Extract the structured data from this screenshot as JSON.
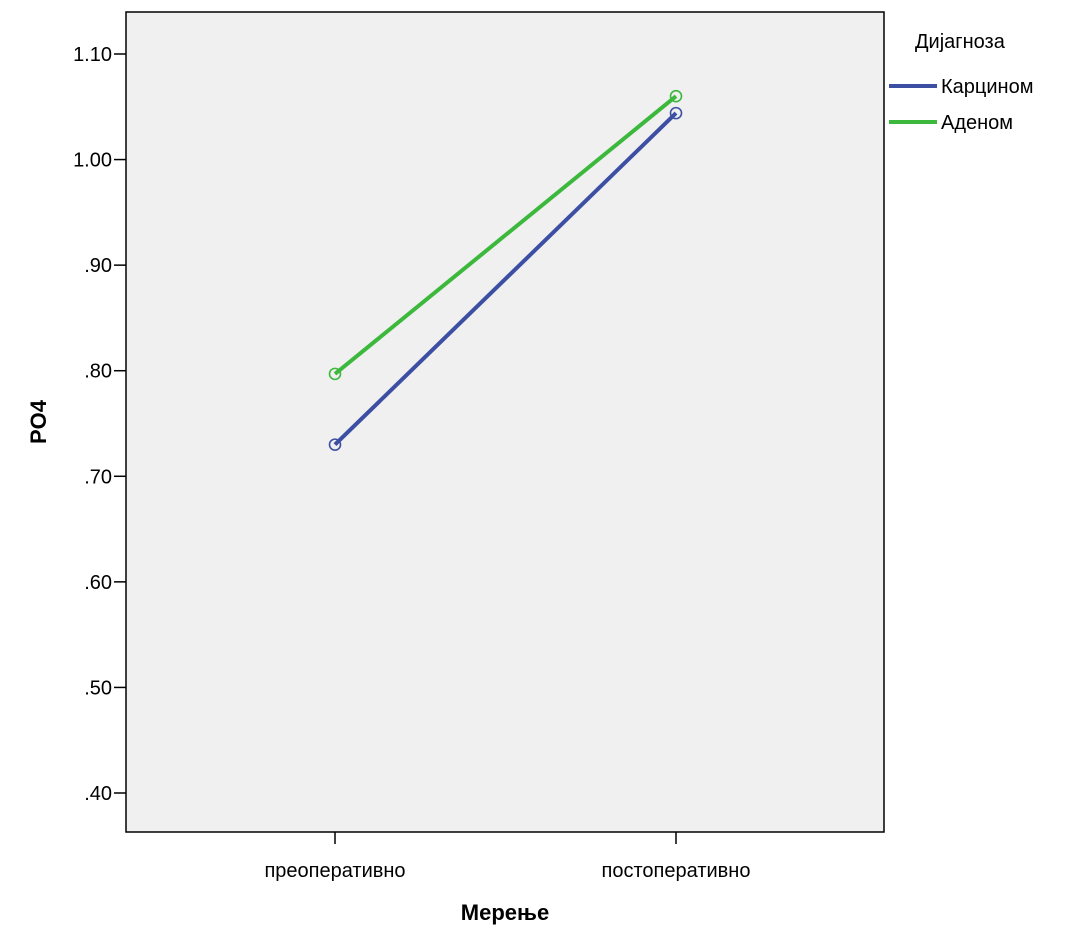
{
  "chart_data": {
    "type": "line",
    "categories": [
      "преоперативно",
      "постоперативно"
    ],
    "series": [
      {
        "name": "Карцином",
        "values": [
          0.73,
          1.044
        ],
        "color": "#3c4fa3"
      },
      {
        "name": "Аденом",
        "values": [
          0.797,
          1.06
        ],
        "color": "#3cb83c"
      }
    ],
    "xlabel": "Мерење",
    "ylabel": "PO4",
    "ylim": [
      0.37,
      1.21
    ],
    "yticks": [
      0.4,
      0.5,
      0.6,
      0.7,
      0.8,
      0.9,
      1.0,
      1.1
    ],
    "ytick_labels": [
      ".40",
      ".50",
      ".60",
      ".70",
      ".80",
      ".90",
      "1.00",
      "1.10"
    ],
    "legend": {
      "title": "Дијагноза",
      "position": "top-right"
    },
    "grid": false,
    "plot_background": "#f0f0f0",
    "marker": "open-circle"
  }
}
